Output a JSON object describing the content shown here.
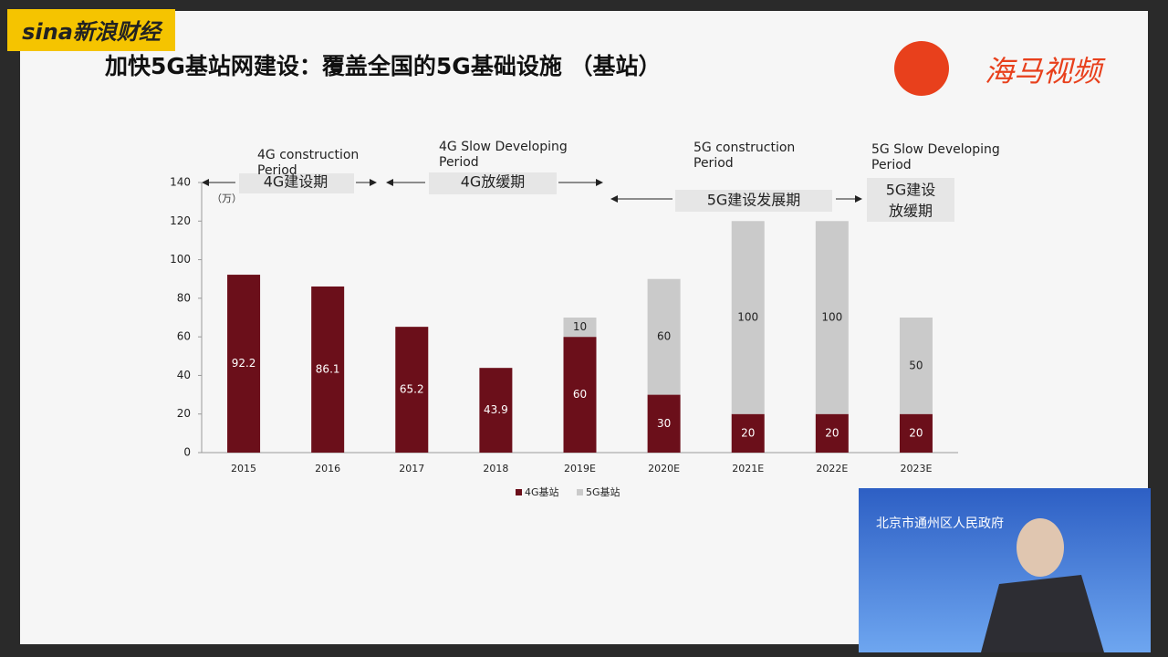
{
  "logo_left": "sina新浪财经",
  "logo_right": "海马视频",
  "chart_data": {
    "type": "bar",
    "stacked": true,
    "title": "加快5G基站网建设：覆盖全国的5G基础设施 （基站）",
    "unit_label": "（万）",
    "categories": [
      "2015",
      "2016",
      "2017",
      "2018",
      "2019E",
      "2020E",
      "2021E",
      "2022E",
      "2023E"
    ],
    "series": [
      {
        "name": "4G基站",
        "color": "#6b0f1a",
        "values": [
          92.2,
          86.1,
          65.2,
          43.9,
          60,
          30,
          20,
          20,
          20
        ]
      },
      {
        "name": "5G基站",
        "color": "#cacaca",
        "values": [
          null,
          null,
          null,
          null,
          10,
          60,
          100,
          100,
          50
        ]
      }
    ],
    "ylim": [
      0,
      140
    ],
    "yticks": [
      0,
      20,
      40,
      60,
      80,
      100,
      120,
      140
    ],
    "periods": [
      {
        "en": [
          "4G construction",
          "Period"
        ],
        "zh": [
          "4G建设期"
        ]
      },
      {
        "en": [
          "4G Slow Developing",
          "Period"
        ],
        "zh": [
          "4G放缓期"
        ]
      },
      {
        "en": [
          "5G construction",
          "Period"
        ],
        "zh": [
          "5G建设发展期"
        ]
      },
      {
        "en": [
          "5G Slow Developing",
          "Period"
        ],
        "zh": [
          "5G建设",
          "放缓期"
        ]
      }
    ]
  },
  "inset": {
    "caption": "北京市通州区人民政府"
  }
}
